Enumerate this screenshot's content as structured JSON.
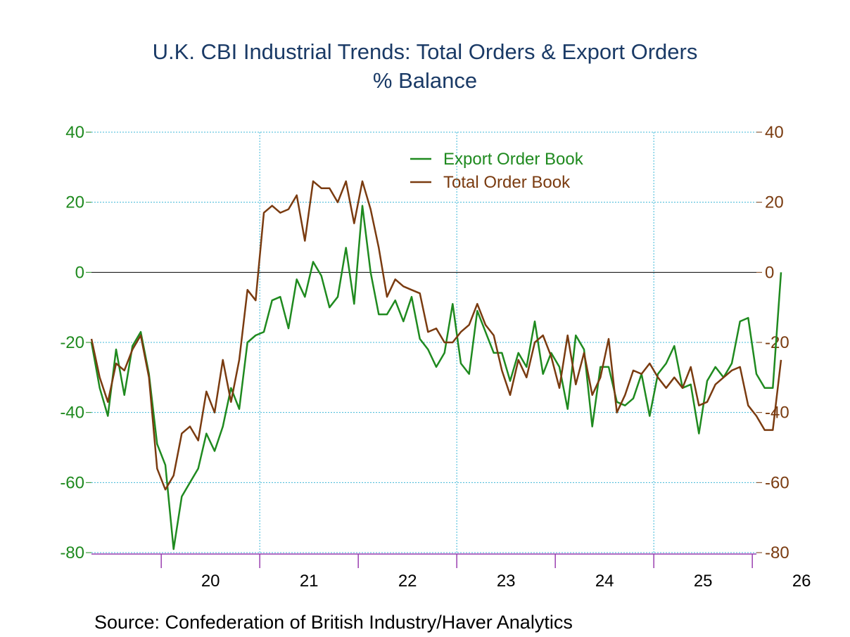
{
  "chart_data": {
    "type": "line",
    "title": "U.K. CBI Industrial Trends: Total Orders & Export Orders",
    "subtitle": "% Balance",
    "source": "Source:  Confederation of British Industry/Haver Analytics",
    "y_left": {
      "range": [
        -80,
        40
      ],
      "ticks": [
        "40",
        "20",
        "0",
        "-20",
        "-40",
        "-60",
        "-80"
      ],
      "color": "#1f8a1f"
    },
    "y_right": {
      "range": [
        -80,
        40
      ],
      "ticks": [
        "40",
        "20",
        "0",
        "-20",
        "-40",
        "-60",
        "-80"
      ],
      "color": "#7a3b10"
    },
    "x_tick_labels": [
      "20",
      "21",
      "22",
      "23",
      "24",
      "25",
      "26"
    ],
    "x_range": {
      "start": "2019-04",
      "end": "2026-01"
    },
    "grid": true,
    "zero_line": true,
    "legend_position": "top-center",
    "colors": {
      "grid": "#3fb8d8",
      "axis": "#9a3fb0",
      "title": "#1a3a66",
      "source": "#000000"
    },
    "series": [
      {
        "name": "Export Order Book",
        "color": "#1f8a1f",
        "start": "2019-04",
        "values": [
          -20,
          -33,
          -41,
          -22,
          -35,
          -21,
          -17,
          -29,
          -49,
          -55,
          -79,
          -64,
          -60,
          -56,
          -46,
          -51,
          -44,
          -33,
          -39,
          -20,
          -18,
          -17,
          -8,
          -7,
          -16,
          -2,
          -7,
          3,
          -1,
          -10,
          -7,
          7,
          -9,
          19,
          0,
          -12,
          -12,
          -8,
          -14,
          -7,
          -19,
          -22,
          -27,
          -23,
          -9,
          -26,
          -29,
          -11,
          -17,
          -23,
          -23,
          -31,
          -23,
          -27,
          -14,
          -29,
          -23,
          -27,
          -39,
          -18,
          -22,
          -44,
          -27,
          -27,
          -37,
          -38,
          -36,
          -29,
          -41,
          -29,
          -26,
          -21,
          -33,
          -32,
          -46,
          -31,
          -27,
          -30,
          -26,
          -14,
          -13,
          -29,
          -33,
          -33,
          0
        ]
      },
      {
        "name": "Total Order Book",
        "color": "#7a3b10",
        "start": "2019-04",
        "values": [
          -19,
          -30,
          -37,
          -26,
          -28,
          -22,
          -18,
          -30,
          -56,
          -62,
          -58,
          -46,
          -44,
          -48,
          -34,
          -40,
          -25,
          -37,
          -25,
          -5,
          -8,
          17,
          19,
          17,
          18,
          22,
          9,
          26,
          24,
          24,
          20,
          26,
          14,
          26,
          18,
          7,
          -7,
          -2,
          -4,
          -5,
          -6,
          -17,
          -16,
          -20,
          -20,
          -17,
          -15,
          -9,
          -15,
          -18,
          -28,
          -35,
          -25,
          -30,
          -20,
          -18,
          -24,
          -33,
          -18,
          -32,
          -23,
          -35,
          -30,
          -19,
          -40,
          -35,
          -28,
          -29,
          -26,
          -30,
          -33,
          -30,
          -33,
          -27,
          -38,
          -37,
          -32,
          -30,
          -28,
          -27,
          -38,
          -41,
          -45,
          -45,
          -25
        ]
      }
    ]
  }
}
